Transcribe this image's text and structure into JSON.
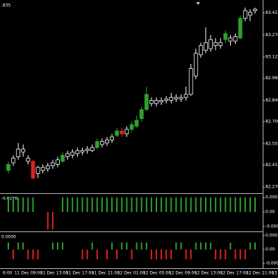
{
  "chart_data": [
    {
      "type": "candlestick",
      "corner_label": ".835",
      "ylim": [
        82.23,
        83.5
      ],
      "yticks": [
        83.415,
        {
          "value": 83.27,
          "label": "83.270"
        },
        83.125,
        82.985,
        {
          "value": 82.84,
          "label": "82.840"
        },
        {
          "value": 82.7,
          "label": "82.700"
        },
        82.555,
        82.415,
        {
          "value": 82.27,
          "label": "82.270"
        }
      ],
      "x_labels": [
        "6:00",
        "11 Dec 09:00",
        "11 Dec 13:00",
        "11 Dec 17:00",
        "11 Dec 21:00",
        "12 Dec 01:00",
        "12 Dec 05:00",
        "12 Dec 09:00",
        "12 Dec 13:00",
        "12 Dec 17:00",
        "12 Dec 21:00",
        "13 Dec 01:00"
      ],
      "candles": [
        {
          "open": 82.38,
          "high": 82.44,
          "low": 82.36,
          "close": 82.42,
          "color": "#2ea02e"
        },
        {
          "open": 82.43,
          "high": 82.48,
          "low": 82.41,
          "close": 82.46,
          "color": "#ffffff"
        },
        {
          "open": 82.47,
          "high": 82.56,
          "low": 82.45,
          "close": 82.52,
          "color": "#ffffff"
        },
        {
          "open": 82.52,
          "high": 82.55,
          "low": 82.47,
          "close": 82.5,
          "color": "#ffffff"
        },
        {
          "open": 82.46,
          "high": 82.48,
          "low": 82.42,
          "close": 82.44,
          "color": "#ffffff"
        },
        {
          "open": 82.44,
          "high": 82.45,
          "low": 82.32,
          "close": 82.33,
          "color": "#e02020"
        },
        {
          "open": 82.36,
          "high": 82.41,
          "low": 82.33,
          "close": 82.4,
          "color": "#ffffff"
        },
        {
          "open": 82.38,
          "high": 82.42,
          "low": 82.36,
          "close": 82.4,
          "color": "#ffffff"
        },
        {
          "open": 82.39,
          "high": 82.43,
          "low": 82.37,
          "close": 82.41,
          "color": "#ffffff"
        },
        {
          "open": 82.41,
          "high": 82.45,
          "low": 82.39,
          "close": 82.43,
          "color": "#ffffff"
        },
        {
          "open": 82.42,
          "high": 82.47,
          "low": 82.4,
          "close": 82.45,
          "color": "#ffffff"
        },
        {
          "open": 82.44,
          "high": 82.5,
          "low": 82.43,
          "close": 82.48,
          "color": "#2ea02e"
        },
        {
          "open": 82.47,
          "high": 82.51,
          "low": 82.45,
          "close": 82.49,
          "color": "#ffffff"
        },
        {
          "open": 82.48,
          "high": 82.52,
          "low": 82.46,
          "close": 82.5,
          "color": "#ffffff"
        },
        {
          "open": 82.49,
          "high": 82.53,
          "low": 82.47,
          "close": 82.51,
          "color": "#ffffff"
        },
        {
          "open": 82.5,
          "high": 82.53,
          "low": 82.48,
          "close": 82.51,
          "color": "#ffffff"
        },
        {
          "open": 82.51,
          "high": 82.54,
          "low": 82.49,
          "close": 82.52,
          "color": "#ffffff"
        },
        {
          "open": 82.51,
          "high": 82.55,
          "low": 82.5,
          "close": 82.53,
          "color": "#ffffff"
        },
        {
          "open": 82.53,
          "high": 82.59,
          "low": 82.52,
          "close": 82.57,
          "color": "#2ea02e"
        },
        {
          "open": 82.57,
          "high": 82.59,
          "low": 82.53,
          "close": 82.55,
          "color": "#ffffff"
        },
        {
          "open": 82.56,
          "high": 82.6,
          "low": 82.54,
          "close": 82.58,
          "color": "#ffffff"
        },
        {
          "open": 82.58,
          "high": 82.62,
          "low": 82.56,
          "close": 82.6,
          "color": "#ffffff"
        },
        {
          "open": 82.61,
          "high": 82.66,
          "low": 82.6,
          "close": 82.64,
          "color": "#2ea02e"
        },
        {
          "open": 82.64,
          "high": 82.66,
          "low": 82.6,
          "close": 82.62,
          "color": "#e02020"
        },
        {
          "open": 82.62,
          "high": 82.67,
          "low": 82.6,
          "close": 82.65,
          "color": "#ffffff"
        },
        {
          "open": 82.65,
          "high": 82.7,
          "low": 82.63,
          "close": 82.68,
          "color": "#2ea02e"
        },
        {
          "open": 82.67,
          "high": 82.74,
          "low": 82.66,
          "close": 82.71,
          "color": "#2ea02e"
        },
        {
          "open": 82.72,
          "high": 82.8,
          "low": 82.7,
          "close": 82.78,
          "color": "#2ea02e"
        },
        {
          "open": 82.78,
          "high": 82.93,
          "low": 82.77,
          "close": 82.88,
          "color": "#2ea02e"
        },
        {
          "open": 82.84,
          "high": 82.86,
          "low": 82.8,
          "close": 82.82,
          "color": "#ffffff"
        },
        {
          "open": 82.82,
          "high": 82.86,
          "low": 82.8,
          "close": 82.84,
          "color": "#ffffff"
        },
        {
          "open": 82.83,
          "high": 82.86,
          "low": 82.81,
          "close": 82.84,
          "color": "#ffffff"
        },
        {
          "open": 82.84,
          "high": 82.87,
          "low": 82.82,
          "close": 82.85,
          "color": "#ffffff"
        },
        {
          "open": 82.84,
          "high": 82.89,
          "low": 82.82,
          "close": 82.86,
          "color": "#ffffff"
        },
        {
          "open": 82.85,
          "high": 82.88,
          "low": 82.83,
          "close": 82.86,
          "color": "#ffffff"
        },
        {
          "open": 82.86,
          "high": 82.88,
          "low": 82.83,
          "close": 82.85,
          "color": "#ffffff"
        },
        {
          "open": 82.86,
          "high": 82.93,
          "low": 82.84,
          "close": 82.88,
          "color": "#ffffff"
        },
        {
          "open": 82.88,
          "high": 83.08,
          "low": 82.87,
          "close": 83.05,
          "color": "#ffffff"
        },
        {
          "open": 83.0,
          "high": 83.18,
          "low": 82.98,
          "close": 83.15,
          "color": "#ffffff"
        },
        {
          "open": 83.14,
          "high": 83.22,
          "low": 83.12,
          "close": 83.2,
          "color": "#ffffff"
        },
        {
          "open": 83.22,
          "high": 83.32,
          "low": 83.15,
          "close": 83.17,
          "color": "#ffffff"
        },
        {
          "open": 83.18,
          "high": 83.27,
          "low": 83.16,
          "close": 83.24,
          "color": "#ffffff"
        },
        {
          "open": 83.22,
          "high": 83.25,
          "low": 83.17,
          "close": 83.2,
          "color": "#ffffff"
        },
        {
          "open": 83.2,
          "high": 83.25,
          "low": 83.18,
          "close": 83.22,
          "color": "#ffffff"
        },
        {
          "open": 83.24,
          "high": 83.3,
          "low": 83.22,
          "close": 83.28,
          "color": "#2ea02e"
        },
        {
          "open": 83.25,
          "high": 83.27,
          "low": 83.2,
          "close": 83.23,
          "color": "#ffffff"
        },
        {
          "open": 83.23,
          "high": 83.28,
          "low": 83.21,
          "close": 83.26,
          "color": "#ffffff"
        },
        {
          "open": 83.25,
          "high": 83.4,
          "low": 83.24,
          "close": 83.38,
          "color": "#2ea02e"
        },
        {
          "open": 83.38,
          "high": 83.45,
          "low": 83.36,
          "close": 83.43,
          "color": "#ffffff"
        },
        {
          "open": 83.42,
          "high": 83.44,
          "low": 83.36,
          "close": 83.4,
          "color": "#ffffff"
        },
        {
          "open": 83.43,
          "high": 83.45,
          "low": 83.41,
          "close": 83.44,
          "color": "#ffffff"
        }
      ]
    },
    {
      "type": "histogram",
      "corner_label": "-0.0276",
      "up_color": "#2ea02e",
      "down_color": "#e02020",
      "ylim": [
        -0.000134,
        0.000129
      ],
      "yticks": [
        0.0001,
        {
          "value": 0,
          "label": "0.00"
        },
        -0.0001
      ],
      "values": [
        0.0001,
        0.0001,
        0.0001,
        0.0001,
        0.0001,
        0.0001,
        null,
        null,
        -0.00012,
        -0.00012,
        null,
        0.0001,
        0.0001,
        0.0001,
        0.0001,
        0.0001,
        0.0001,
        0.0001,
        0.0001,
        0.0001,
        0.0001,
        0.0001,
        0.0001,
        0.0001,
        0.0001,
        0.0001,
        0.0001,
        0.0001,
        0.0001,
        0.0001,
        0.0001,
        0.0001,
        0.0001,
        0.0001,
        0.0001,
        0.0001,
        0.0001,
        0.0001,
        0.0001,
        0.0001,
        0.0001,
        0.0001,
        0.0001,
        0.0001,
        0.0001,
        0.0001,
        0.0001,
        0.0001,
        0.0001,
        0.0001,
        0.0001
      ]
    },
    {
      "type": "histogram",
      "corner_label": "0.0000",
      "up_color": "#2ea02e",
      "down_color": "#e02020",
      "ylim": [
        -0.000134,
        0.000129
      ],
      "yticks": [
        0.0001,
        {
          "value": 0,
          "label": "0.00"
        },
        -0.0001
      ],
      "values": [
        5e-05,
        -7e-05,
        5e-05,
        5e-05,
        -7e-05,
        -7e-05,
        -7e-05,
        null,
        null,
        5e-05,
        5e-05,
        5e-05,
        null,
        null,
        null,
        -7e-05,
        -7e-05,
        5e-05,
        -7e-05,
        null,
        -7e-05,
        5e-05,
        -7e-05,
        5e-05,
        5e-05,
        -7e-05,
        5e-05,
        5e-05,
        5e-05,
        -7e-05,
        -7e-05,
        -7e-05,
        -7e-05,
        -7e-05,
        5e-05,
        5e-05,
        -7e-05,
        -7e-05,
        5e-05,
        5e-05,
        5e-05,
        5e-05,
        -7e-05,
        -7e-05,
        -7e-05,
        5e-05,
        -7e-05,
        -7e-05,
        -7e-05,
        5e-05,
        5e-05
      ]
    }
  ]
}
